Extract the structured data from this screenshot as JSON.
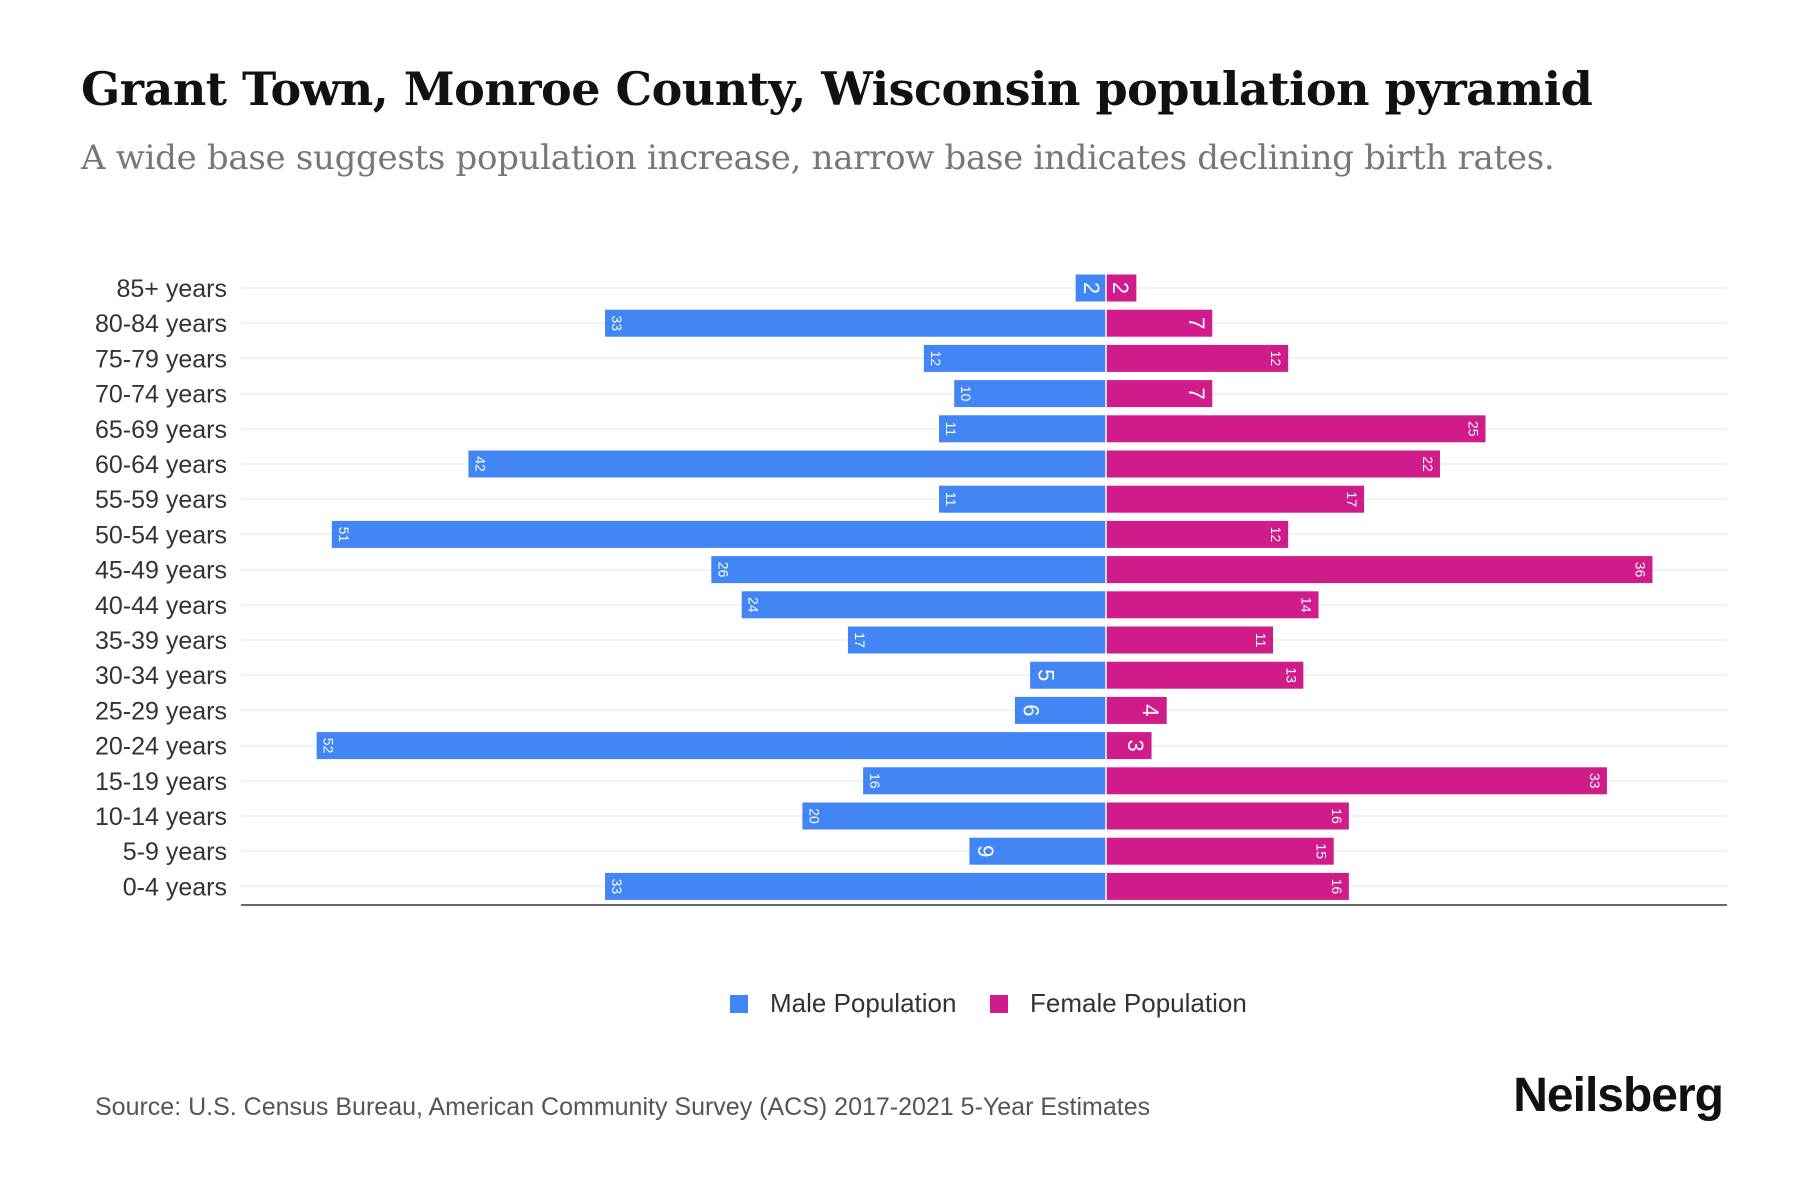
{
  "title": "Grant Town, Monroe County, Wisconsin population pyramid",
  "subtitle": "A wide base suggests population increase, narrow base indicates declining birth rates.",
  "source": "Source: U.S. Census Bureau, American Community Survey (ACS) 2017-2021 5-Year Estimates",
  "logo": "Neilsberg",
  "colors": {
    "male": "#4285f4",
    "female": "#d01c8b"
  },
  "chart_data": {
    "type": "bar",
    "orientation": "horizontal-pyramid",
    "title": "Grant Town, Monroe County, Wisconsin population pyramid",
    "categories": [
      "85+ years",
      "80-84 years",
      "75-79 years",
      "70-74 years",
      "65-69 years",
      "60-64 years",
      "55-59 years",
      "50-54 years",
      "45-49 years",
      "40-44 years",
      "35-39 years",
      "30-34 years",
      "25-29 years",
      "20-24 years",
      "15-19 years",
      "10-14 years",
      "5-9 years",
      "0-4 years"
    ],
    "series": [
      {
        "name": "Male Population",
        "values": [
          2,
          33,
          12,
          10,
          11,
          42,
          11,
          51,
          26,
          24,
          17,
          5,
          6,
          52,
          16,
          20,
          9,
          33
        ]
      },
      {
        "name": "Female Population",
        "values": [
          2,
          7,
          12,
          7,
          25,
          22,
          17,
          12,
          36,
          14,
          11,
          13,
          4,
          3,
          33,
          16,
          15,
          16
        ]
      }
    ],
    "legend": "bottom-center",
    "grid": true
  }
}
